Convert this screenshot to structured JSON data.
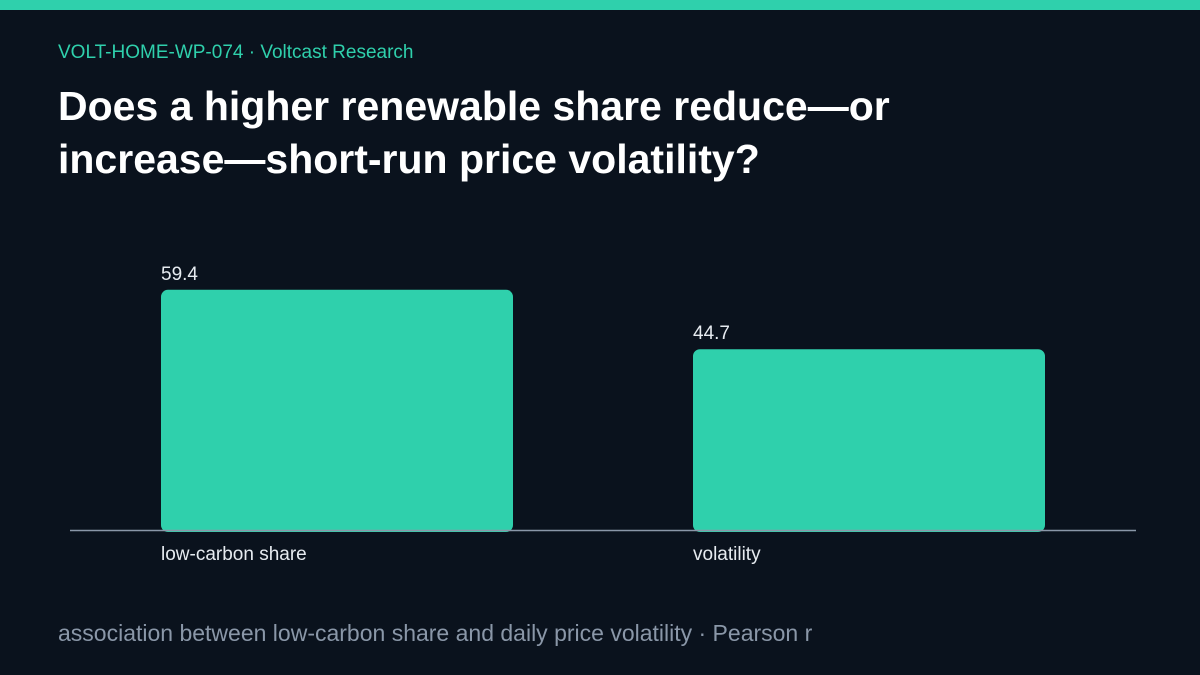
{
  "header": {
    "kicker": "VOLT-HOME-WP-074 · Voltcast Research",
    "title": "Does a higher renewable share reduce—or increase—short-run price volatility?"
  },
  "footer": {
    "caption": "association between low-carbon share and daily price volatility · Pearson r"
  },
  "colors": {
    "accent": "#2fd0ac",
    "background": "#0a121d",
    "axis": "#8a97a8",
    "label_text": "#e6ebf0"
  },
  "chart_data": {
    "type": "bar",
    "categories": [
      "low-carbon share",
      "volatility"
    ],
    "values": [
      59.4,
      44.7
    ],
    "data_labels": [
      "59.4",
      "44.7"
    ],
    "ylim": [
      0,
      68
    ],
    "grid": false,
    "legend": "none"
  }
}
